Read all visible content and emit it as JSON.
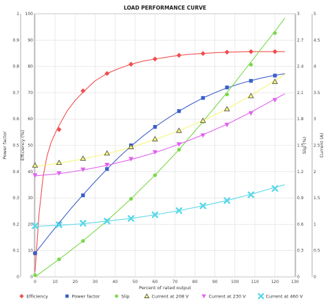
{
  "chart_data": {
    "type": "line",
    "title": "LOAD PERFORMANCE CURVE",
    "xlabel": "Percent of rated output",
    "xlim": [
      0,
      130
    ],
    "x_ticks": [
      0,
      10,
      20,
      30,
      40,
      50,
      60,
      70,
      80,
      90,
      100,
      110,
      120,
      130
    ],
    "axes": [
      {
        "id": "pf",
        "label": "Power factor",
        "lim": [
          0,
          1
        ],
        "ticks": [
          "0",
          "0.1",
          "0.2",
          "0.3",
          "0.4",
          "0.5",
          "0.6",
          "0.7",
          "0.8",
          "0.9",
          "1"
        ]
      },
      {
        "id": "eff",
        "label": "Efficiency (%)",
        "lim": [
          0,
          100
        ],
        "ticks": [
          "0",
          "10",
          "20",
          "30",
          "40",
          "50",
          "60",
          "70",
          "80",
          "90",
          "100"
        ]
      },
      {
        "id": "slip",
        "label": "Slip (%)",
        "lim": [
          0,
          3
        ],
        "ticks": [
          "0",
          "0.3",
          "0.6",
          "0.9",
          "1.2",
          "1.5",
          "1.8",
          "2.1",
          "2.4",
          "2.7",
          "3"
        ]
      },
      {
        "id": "current",
        "label": "Current (A)",
        "lim": [
          0,
          5
        ],
        "ticks": [
          "0",
          "0.5",
          "1",
          "1.5",
          "2",
          "2.5",
          "3",
          "3.5",
          "4",
          "4.5",
          "5"
        ]
      }
    ],
    "grid": true,
    "legend_placement": "bottom",
    "series": [
      {
        "name": "Efficiency",
        "axis": "eff",
        "color": "#f04e4e",
        "marker": "diamond",
        "x": [
          0,
          12,
          24,
          36,
          48,
          60,
          72,
          84,
          96,
          108,
          120
        ],
        "y": [
          9,
          56,
          70.7,
          77.3,
          80.8,
          82.8,
          84.2,
          84.9,
          85.4,
          85.6,
          85.6
        ],
        "curve_x": [
          0,
          2,
          4,
          6,
          8,
          10,
          12,
          16,
          20,
          24,
          30,
          36,
          42,
          48,
          54,
          60,
          66,
          72,
          78,
          84,
          90,
          96,
          102,
          108,
          114,
          120,
          125
        ],
        "curve_y": [
          2,
          24,
          38,
          46,
          51,
          54.5,
          57.5,
          63,
          67,
          70.2,
          74.5,
          77.3,
          79.2,
          80.8,
          82,
          82.8,
          83.5,
          84.2,
          84.6,
          84.9,
          85.2,
          85.4,
          85.5,
          85.6,
          85.6,
          85.6,
          85.6
        ]
      },
      {
        "name": "Power factor",
        "axis": "pf",
        "color": "#3a5fc8",
        "marker": "square",
        "x": [
          0,
          12,
          24,
          36,
          48,
          60,
          72,
          84,
          96,
          108,
          120
        ],
        "y": [
          0.09,
          0.2,
          0.31,
          0.41,
          0.5,
          0.57,
          0.63,
          0.68,
          0.72,
          0.745,
          0.765
        ],
        "curve_x": [
          0,
          6,
          12,
          18,
          24,
          30,
          36,
          42,
          48,
          54,
          60,
          66,
          72,
          78,
          84,
          90,
          96,
          102,
          108,
          114,
          120,
          125
        ],
        "curve_y": [
          0.09,
          0.148,
          0.205,
          0.26,
          0.312,
          0.362,
          0.41,
          0.455,
          0.497,
          0.535,
          0.57,
          0.601,
          0.63,
          0.656,
          0.68,
          0.7,
          0.718,
          0.733,
          0.746,
          0.757,
          0.766,
          0.772
        ]
      },
      {
        "name": "Slip",
        "axis": "slip",
        "color": "#7ad848",
        "marker": "circle",
        "x": [
          0,
          12,
          24,
          36,
          48,
          60,
          72,
          84,
          96,
          108,
          120
        ],
        "y": [
          0.02,
          0.2,
          0.41,
          0.64,
          0.89,
          1.16,
          1.45,
          1.77,
          2.08,
          2.42,
          2.78
        ],
        "curve_x": [
          0,
          12,
          24,
          36,
          48,
          60,
          72,
          84,
          96,
          108,
          120,
          125
        ],
        "curve_y": [
          0,
          0.2,
          0.41,
          0.64,
          0.89,
          1.16,
          1.45,
          1.77,
          2.1,
          2.45,
          2.8,
          2.95
        ]
      },
      {
        "name": "Current at 208 V",
        "axis": "current",
        "color": "#f5f57a",
        "marker": "triangle-up",
        "x": [
          0,
          12,
          24,
          36,
          48,
          60,
          72,
          84,
          96,
          108,
          120
        ],
        "y": [
          2.12,
          2.17,
          2.25,
          2.35,
          2.47,
          2.62,
          2.78,
          2.97,
          3.19,
          3.44,
          3.71
        ],
        "curve_x": [
          0,
          12,
          24,
          36,
          48,
          60,
          72,
          84,
          96,
          108,
          120,
          125
        ],
        "curve_y": [
          2.1,
          2.16,
          2.24,
          2.34,
          2.46,
          2.61,
          2.78,
          2.97,
          3.19,
          3.45,
          3.73,
          3.85
        ]
      },
      {
        "name": "Current at 230 V",
        "axis": "current",
        "color": "#e060f0",
        "marker": "triangle-down",
        "x": [
          0,
          12,
          24,
          36,
          48,
          60,
          72,
          84,
          96,
          108,
          120
        ],
        "y": [
          1.93,
          1.97,
          2.04,
          2.13,
          2.24,
          2.37,
          2.52,
          2.69,
          2.89,
          3.11,
          3.36
        ],
        "curve_x": [
          0,
          12,
          24,
          36,
          48,
          60,
          72,
          84,
          96,
          108,
          120,
          125
        ],
        "curve_y": [
          1.92,
          1.96,
          2.03,
          2.12,
          2.23,
          2.36,
          2.52,
          2.7,
          2.9,
          3.13,
          3.38,
          3.48
        ]
      },
      {
        "name": "Current at 460 V",
        "axis": "current",
        "color": "#5ad8e8",
        "marker": "x",
        "x": [
          0,
          12,
          24,
          36,
          48,
          60,
          72,
          84,
          96,
          108,
          120
        ],
        "y": [
          0.97,
          0.99,
          1.02,
          1.06,
          1.11,
          1.18,
          1.26,
          1.35,
          1.45,
          1.56,
          1.68
        ],
        "curve_x": [
          0,
          12,
          24,
          36,
          48,
          60,
          72,
          84,
          96,
          108,
          120,
          125
        ],
        "curve_y": [
          0.96,
          0.98,
          1.01,
          1.06,
          1.11,
          1.18,
          1.26,
          1.35,
          1.45,
          1.57,
          1.7,
          1.75
        ]
      }
    ]
  }
}
